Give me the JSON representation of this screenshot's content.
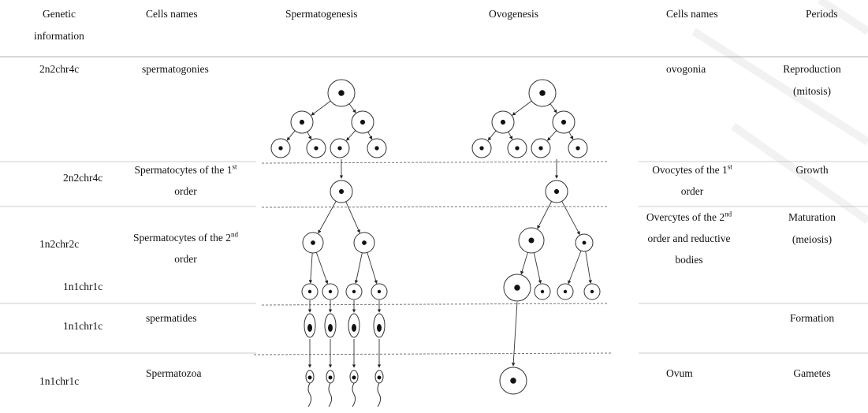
{
  "table": {
    "header": [
      "Genetic information",
      "Cells names",
      "Spermatogenesis",
      "Ovogenesis",
      "Cells names",
      "Periods"
    ],
    "rows": [
      {
        "genetic_info": [
          "2n2chr4c"
        ],
        "spermatogenesis_cells": "spermatogonies",
        "ovogenesis_cells": "ovogonia",
        "period": "Reproduction (mitosis)"
      },
      {
        "genetic_info": [
          "2n2chr4c"
        ],
        "spermatogenesis_cells": {
          "text": "Spermatocytes of the 1",
          "sup": "st",
          "after": " order"
        },
        "ovogenesis_cells": {
          "text": "Ovocytes of the 1",
          "sup": "st",
          "after": " order"
        },
        "period": "Growth"
      },
      {
        "genetic_info": [
          "1n2chr2c",
          "1n1chr1c"
        ],
        "spermatogenesis_cells": {
          "text": "Spermatocytes of the 2",
          "sup": "nd",
          "after": " order"
        },
        "ovogenesis_cells": {
          "text": "Overcytes of the 2",
          "sup": "nd",
          "after": " order and reductive bodies"
        },
        "period": "Maturation (meiosis)"
      },
      {
        "genetic_info": [
          "1n1chr1c"
        ],
        "spermatogenesis_cells": "spermatides",
        "period": "Formation"
      },
      {
        "genetic_info": [
          "1n1chr1c"
        ],
        "spermatogenesis_cells": "Spermatozoa",
        "ovogenesis_cells": "Ovum",
        "period": "Gametes"
      }
    ]
  }
}
